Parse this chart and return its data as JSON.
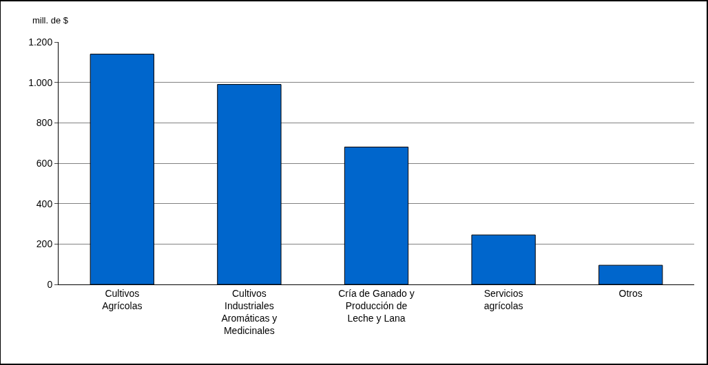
{
  "chart_data": {
    "type": "bar",
    "ylabel": "mill. de $",
    "categories": [
      "Cultivos Agrícolas",
      "Cultivos Industriales Aromáticas y Medicinales",
      "Cría de Ganado y Producción de Leche y Lana",
      "Servicios agrícolas",
      "Otros"
    ],
    "values": [
      1140,
      990,
      680,
      245,
      95
    ],
    "color": "#0066cc",
    "ylim": [
      0,
      1200
    ],
    "yticks": [
      0,
      200,
      400,
      600,
      800,
      {
        "value": 1000,
        "label": "1.000"
      },
      {
        "value": 1200,
        "label": "1.200"
      }
    ],
    "grid": "y",
    "legend": false
  }
}
